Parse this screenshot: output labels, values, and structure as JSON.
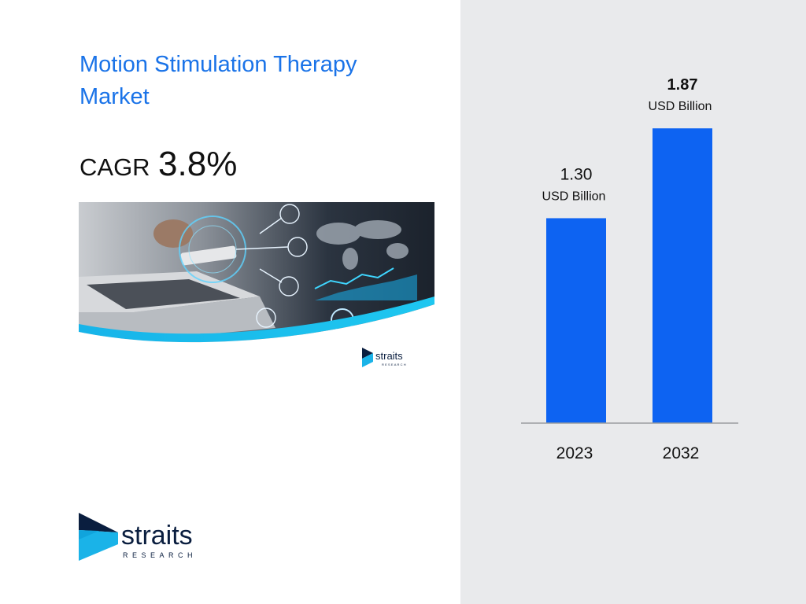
{
  "title": "Motion Stimulation Therapy Market",
  "cagr": {
    "label": "CAGR",
    "value": "3.8%"
  },
  "brand": {
    "name": "straits",
    "sub": "RESEARCH",
    "primary": "#0a1e3f",
    "accent": "#1ab3e8"
  },
  "colors": {
    "title": "#1a73e8",
    "bar": "#0d63f2",
    "panel": "#e9eaec",
    "axis": "#9a9ca0"
  },
  "chart_data": {
    "type": "bar",
    "categories": [
      "2023",
      "2032"
    ],
    "values": [
      1.3,
      1.87
    ],
    "value_labels": [
      "1.30",
      "1.87"
    ],
    "unit_label": "USD Billion",
    "ylim": [
      0,
      2.35
    ],
    "grid": false,
    "legend": "none"
  }
}
